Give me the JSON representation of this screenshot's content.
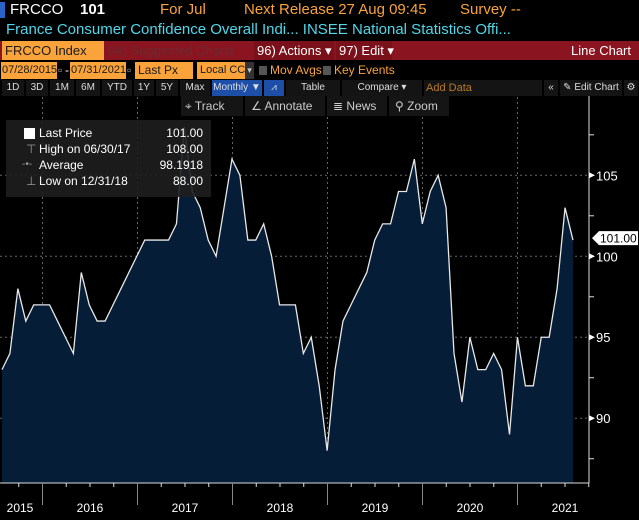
{
  "header": {
    "ticker": "FRCCO",
    "last": "101",
    "period": "For Jul",
    "next_release": "Next Release 27 Aug 09:45",
    "survey": "Survey --",
    "description": "France Consumer Confidence Overall Indi... INSEE National Statistics Offi..."
  },
  "bar": {
    "security": "FRCCO Index",
    "suggested": "94) Suggested Charts",
    "actions": "96) Actions",
    "edit": "97) Edit",
    "chart_type": "Line Chart"
  },
  "controls": {
    "start_date": "07/28/2015",
    "end_date": "07/31/2021",
    "field": "Last Px",
    "currency": "Local CCY",
    "mov_avgs": "Mov Avgs",
    "key_events": "Key Events"
  },
  "periods": [
    "1D",
    "3D",
    "1M",
    "6M",
    "YTD",
    "1Y",
    "5Y",
    "Max"
  ],
  "frequency": "Monthly ▼",
  "table": "Table",
  "compare": "Compare",
  "add_data_placeholder": "Add Data",
  "edit_chart": "Edit Chart",
  "tools": {
    "track": "Track",
    "annotate": "Annotate",
    "news": "News",
    "zoom": "Zoom"
  },
  "legend": {
    "last_label": "Last Price",
    "last_value": "101.00",
    "high_label": "High on 06/30/17",
    "high_value": "108.00",
    "avg_label": "Average",
    "avg_value": "98.1918",
    "low_label": "Low on 12/31/18",
    "low_value": "88.00"
  },
  "colors": {
    "orange": "#f9a33a",
    "red": "#8a1420",
    "cyan": "#4fd7ea",
    "fill": "#051d36"
  },
  "chart_data": {
    "type": "area",
    "title": "France Consumer Confidence Overall Index",
    "x_start": "2015-07",
    "frequency": "monthly",
    "values": [
      93,
      94,
      98,
      96,
      97,
      97,
      97,
      96,
      95,
      94,
      99,
      97,
      96,
      96,
      97,
      98,
      99,
      100,
      101,
      101,
      101,
      101,
      102,
      108,
      104,
      103,
      101,
      100,
      103,
      106,
      105,
      101,
      101,
      102,
      100,
      97,
      97,
      97,
      94,
      95,
      92,
      88,
      93,
      96,
      97,
      98,
      99,
      101,
      102,
      102,
      104,
      104,
      106,
      102,
      104,
      105,
      103,
      94,
      91,
      95,
      93,
      93,
      94,
      93,
      89,
      95,
      92,
      92,
      95,
      95,
      98,
      103,
      101
    ],
    "yticks": [
      90,
      95,
      100,
      105
    ],
    "xticks": [
      "2015",
      "2016",
      "2017",
      "2018",
      "2019",
      "2020",
      "2021"
    ],
    "ylim": [
      86,
      108.6
    ],
    "last_value_label": "101.00",
    "grid": true
  }
}
